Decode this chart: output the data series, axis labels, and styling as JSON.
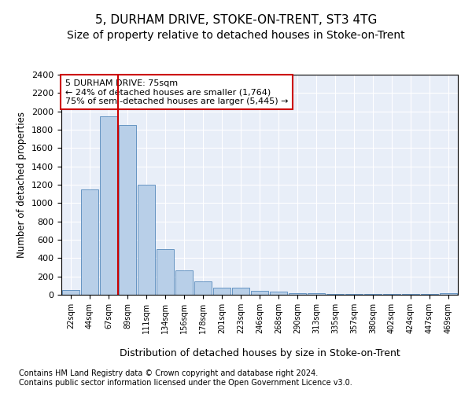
{
  "title": "5, DURHAM DRIVE, STOKE-ON-TRENT, ST3 4TG",
  "subtitle": "Size of property relative to detached houses in Stoke-on-Trent",
  "xlabel": "Distribution of detached houses by size in Stoke-on-Trent",
  "ylabel": "Number of detached properties",
  "bar_labels": [
    "22sqm",
    "44sqm",
    "67sqm",
    "89sqm",
    "111sqm",
    "134sqm",
    "156sqm",
    "178sqm",
    "201sqm",
    "223sqm",
    "246sqm",
    "268sqm",
    "290sqm",
    "313sqm",
    "335sqm",
    "357sqm",
    "380sqm",
    "402sqm",
    "424sqm",
    "447sqm",
    "469sqm"
  ],
  "bar_values": [
    50,
    1150,
    1950,
    1850,
    1200,
    500,
    270,
    150,
    80,
    80,
    45,
    35,
    20,
    20,
    8,
    8,
    8,
    8,
    8,
    8,
    20
  ],
  "bar_color": "#b8cfe8",
  "bar_edgecolor": "#5588bb",
  "vline_color": "#cc0000",
  "annotation_text": "5 DURHAM DRIVE: 75sqm\n← 24% of detached houses are smaller (1,764)\n75% of semi-detached houses are larger (5,445) →",
  "annotation_box_color": "#ffffff",
  "annotation_box_edgecolor": "#cc0000",
  "ylim": [
    0,
    2400
  ],
  "yticks": [
    0,
    200,
    400,
    600,
    800,
    1000,
    1200,
    1400,
    1600,
    1800,
    2000,
    2200,
    2400
  ],
  "footnote1": "Contains HM Land Registry data © Crown copyright and database right 2024.",
  "footnote2": "Contains public sector information licensed under the Open Government Licence v3.0.",
  "background_color": "#e8eef8",
  "fig_background": "#ffffff",
  "title_fontsize": 11,
  "subtitle_fontsize": 10,
  "xlabel_fontsize": 9,
  "ylabel_fontsize": 8.5
}
